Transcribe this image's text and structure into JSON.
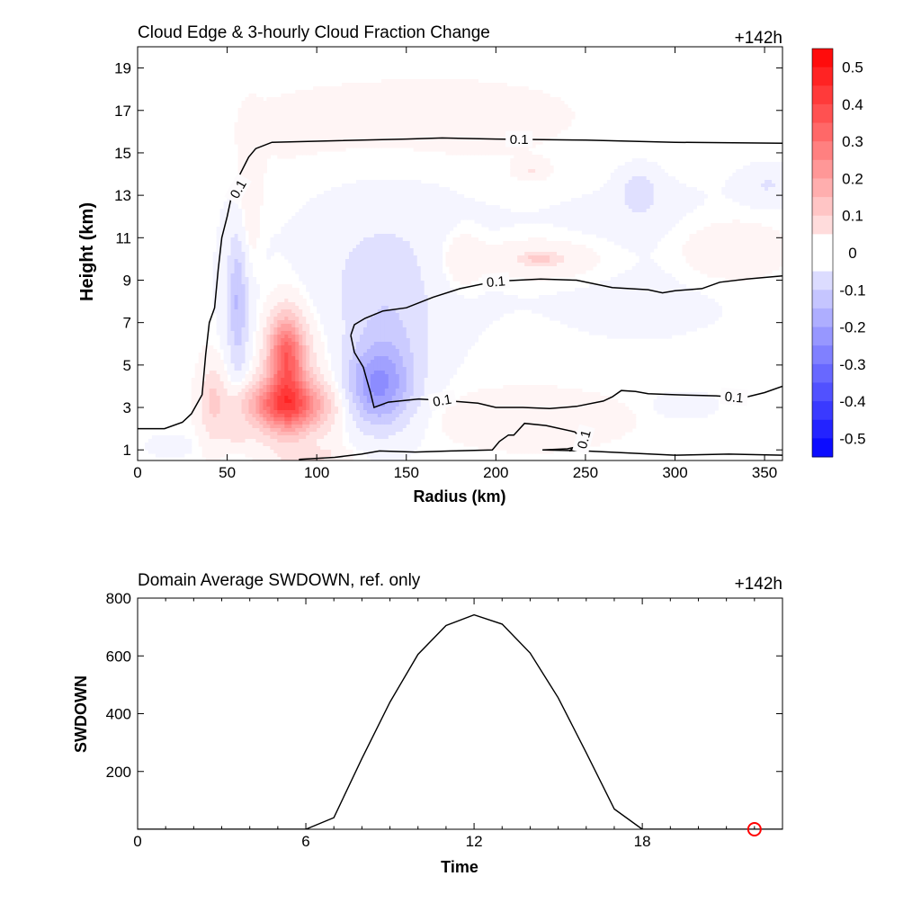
{
  "chart_data": [
    {
      "type": "contour",
      "title": "Cloud Edge & 3-hourly Cloud Fraction Change",
      "time_label": "+142h",
      "xlabel": "Radius (km)",
      "ylabel": "Height (km)",
      "xlim": [
        0,
        360
      ],
      "ylim": [
        0.5,
        20
      ],
      "xticks": [
        "0",
        "50",
        "100",
        "150",
        "200",
        "250",
        "300",
        "350"
      ],
      "yticks": [
        "1",
        "3",
        "5",
        "7",
        "9",
        "11",
        "13",
        "15",
        "17",
        "19"
      ],
      "colorbar": {
        "range": [
          -0.55,
          0.55
        ],
        "step": 0.05,
        "labels": [
          "0.5",
          "0.4",
          "0.3",
          "0.2",
          "0.1",
          "0",
          "-0.1",
          "-0.2",
          "-0.3",
          "-0.4",
          "-0.5"
        ],
        "negative_color": "#0000ff",
        "positive_color": "#ff0000"
      },
      "contour_level": "0.1",
      "contour_lines": [
        {
          "points": [
            [
              0,
              2.0
            ],
            [
              15,
              2.0
            ],
            [
              25,
              2.3
            ],
            [
              30,
              2.7
            ],
            [
              36,
              3.6
            ],
            [
              38,
              5.5
            ],
            [
              40,
              7.0
            ],
            [
              43,
              7.7
            ],
            [
              45,
              9.5
            ],
            [
              47,
              11.0
            ],
            [
              50,
              12.0
            ],
            [
              52,
              12.8
            ],
            [
              56,
              13.8
            ],
            [
              62,
              14.8
            ],
            [
              66,
              15.2
            ],
            [
              75,
              15.5
            ],
            [
              100,
              15.55
            ],
            [
              150,
              15.65
            ],
            [
              170,
              15.7
            ],
            [
              200,
              15.65
            ],
            [
              250,
              15.6
            ],
            [
              300,
              15.5
            ],
            [
              360,
              15.45
            ]
          ],
          "label": {
            "text": "0.1",
            "x": 56,
            "y": 13.3,
            "angle": -60
          }
        },
        {
          "label": {
            "text": "0.1",
            "x": 213,
            "y": 15.65,
            "angle": 0
          }
        },
        {
          "points": [
            [
              119,
              6.4
            ],
            [
              121,
              6.9
            ],
            [
              127,
              7.2
            ],
            [
              137,
              7.55
            ],
            [
              150,
              7.7
            ],
            [
              165,
              8.2
            ],
            [
              180,
              8.6
            ],
            [
              200,
              8.95
            ],
            [
              225,
              9.05
            ],
            [
              245,
              9.0
            ],
            [
              265,
              8.65
            ],
            [
              285,
              8.55
            ],
            [
              293,
              8.4
            ],
            [
              300,
              8.5
            ],
            [
              315,
              8.6
            ],
            [
              325,
              8.9
            ],
            [
              340,
              9.05
            ],
            [
              360,
              9.2
            ]
          ],
          "label": {
            "text": "0.1",
            "x": 200,
            "y": 8.95,
            "angle": -5
          }
        },
        {
          "points": [
            [
              119,
              6.4
            ],
            [
              121,
              5.6
            ],
            [
              126,
              4.9
            ],
            [
              128,
              4.3
            ],
            [
              130,
              3.7
            ],
            [
              132,
              3.0
            ],
            [
              140,
              3.25
            ],
            [
              157,
              3.4
            ],
            [
              175,
              3.3
            ],
            [
              190,
              3.2
            ],
            [
              200,
              3.0
            ],
            [
              215,
              3.0
            ],
            [
              230,
              2.95
            ],
            [
              245,
              3.05
            ],
            [
              260,
              3.3
            ],
            [
              265,
              3.5
            ],
            [
              270,
              3.8
            ],
            [
              278,
              3.75
            ],
            [
              285,
              3.65
            ],
            [
              300,
              3.6
            ],
            [
              323,
              3.55
            ],
            [
              338,
              3.45
            ],
            [
              350,
              3.7
            ],
            [
              360,
              4.0
            ]
          ],
          "label": {
            "text": "0.1",
            "x": 170,
            "y": 3.35,
            "angle": -10
          }
        },
        {
          "label": {
            "text": "0.1",
            "x": 333,
            "y": 3.5,
            "angle": 5
          }
        },
        {
          "points": [
            [
              90,
              0.55
            ],
            [
              110,
              0.65
            ],
            [
              125,
              0.8
            ],
            [
              135,
              0.95
            ],
            [
              155,
              0.9
            ],
            [
              175,
              0.95
            ],
            [
              198,
              1.0
            ],
            [
              202,
              1.4
            ],
            [
              207,
              1.7
            ],
            [
              210,
              1.7
            ],
            [
              216,
              2.25
            ],
            [
              228,
              2.15
            ],
            [
              244,
              1.85
            ],
            [
              246,
              1.7
            ]
          ]
        },
        {
          "points": [
            [
              246,
              1.7
            ],
            [
              248,
              1.2
            ],
            [
              240,
              1.05
            ],
            [
              226,
              1.0
            ],
            [
              250,
              0.95
            ],
            [
              275,
              0.85
            ],
            [
              300,
              0.75
            ],
            [
              330,
              0.8
            ],
            [
              360,
              0.75
            ]
          ],
          "label": {
            "text": "0.1",
            "x": 249,
            "y": 1.5,
            "angle": -75
          }
        },
        {
          "points": [
            [
              241,
              0.95
            ],
            [
              244,
              1.15
            ],
            [
              248,
              1.3
            ],
            [
              247,
              1.05
            ],
            [
              241,
              0.95
            ]
          ]
        }
      ],
      "field_blobs": [
        {
          "x": 82,
          "y": 3.1,
          "rx": 24,
          "ry": 1.1,
          "v": 0.3
        },
        {
          "x": 83,
          "y": 5.6,
          "rx": 9,
          "ry": 1.7,
          "v": 0.25
        },
        {
          "x": 84,
          "y": 4.2,
          "rx": 12,
          "ry": 2.6,
          "v": 0.15
        },
        {
          "x": 88,
          "y": 4.0,
          "rx": 30,
          "ry": 4.2,
          "v": 0.05
        },
        {
          "x": 42,
          "y": 3.3,
          "rx": 7,
          "ry": 1.8,
          "v": 0.1
        },
        {
          "x": 62,
          "y": 11.5,
          "rx": 7,
          "ry": 3.5,
          "v": 0.05
        },
        {
          "x": 55,
          "y": 1.6,
          "rx": 10,
          "ry": 0.6,
          "v": 0.05
        },
        {
          "x": 133,
          "y": 3.9,
          "rx": 18,
          "ry": 1.8,
          "v": -0.2
        },
        {
          "x": 140,
          "y": 5.2,
          "rx": 20,
          "ry": 3.0,
          "v": -0.08
        },
        {
          "x": 130,
          "y": 7.5,
          "rx": 40,
          "ry": 3.0,
          "v": -0.05
        },
        {
          "x": 56,
          "y": 8.0,
          "rx": 5,
          "ry": 3.0,
          "v": -0.12
        },
        {
          "x": 58,
          "y": 7.5,
          "rx": 12,
          "ry": 5.5,
          "v": -0.05
        },
        {
          "x": 140,
          "y": 11.0,
          "rx": 50,
          "ry": 3.0,
          "v": -0.04
        },
        {
          "x": 280,
          "y": 11.0,
          "rx": 80,
          "ry": 5.0,
          "v": -0.02
        },
        {
          "x": 280,
          "y": 13.1,
          "rx": 10,
          "ry": 1.0,
          "v": -0.08
        },
        {
          "x": 352,
          "y": 13.5,
          "rx": 14,
          "ry": 0.8,
          "v": -0.05
        },
        {
          "x": 220,
          "y": 2.5,
          "rx": 45,
          "ry": 1.2,
          "v": 0.05
        },
        {
          "x": 180,
          "y": 10.0,
          "rx": 12,
          "ry": 1.5,
          "v": 0.05
        },
        {
          "x": 225,
          "y": 10.0,
          "rx": 40,
          "ry": 1.0,
          "v": 0.05
        },
        {
          "x": 225,
          "y": 10.0,
          "rx": 10,
          "ry": 0.3,
          "v": 0.1
        },
        {
          "x": 330,
          "y": 10.4,
          "rx": 30,
          "ry": 1.4,
          "v": 0.05
        },
        {
          "x": 220,
          "y": 14.2,
          "rx": 8,
          "ry": 0.4,
          "v": 0.05
        },
        {
          "x": 100,
          "y": 0.8,
          "rx": 15,
          "ry": 0.3,
          "v": 0.05
        },
        {
          "x": 305,
          "y": 3.1,
          "rx": 15,
          "ry": 0.5,
          "v": -0.04
        },
        {
          "x": 180,
          "y": 15.8,
          "rx": 180,
          "ry": 3.5,
          "v": 0.015
        },
        {
          "x": 18,
          "y": 1.2,
          "rx": 12,
          "ry": 0.5,
          "v": -0.03
        }
      ]
    },
    {
      "type": "line",
      "title": "Domain Average SWDOWN, ref. only",
      "time_label": "+142h",
      "xlabel": "Time",
      "ylabel": "SWDOWN",
      "xlim": [
        0,
        23
      ],
      "ylim": [
        0,
        800
      ],
      "xticks": [
        "0",
        "6",
        "12",
        "18"
      ],
      "yticks": [
        "200",
        "400",
        "600",
        "800"
      ],
      "series": [
        {
          "x": [
            0,
            1,
            2,
            3,
            4,
            5,
            6,
            7,
            8,
            9,
            10,
            11,
            12,
            13,
            14,
            15,
            16,
            17,
            18,
            19,
            20,
            21,
            22,
            23
          ],
          "values": [
            0,
            0,
            0,
            0,
            0,
            0,
            0,
            40,
            245,
            440,
            605,
            705,
            742,
            710,
            610,
            455,
            265,
            70,
            0,
            0,
            0,
            0,
            0,
            0
          ],
          "color": "#000000"
        }
      ],
      "current_marker": {
        "x": 22,
        "y": 0,
        "color": "#ff0000"
      }
    }
  ]
}
